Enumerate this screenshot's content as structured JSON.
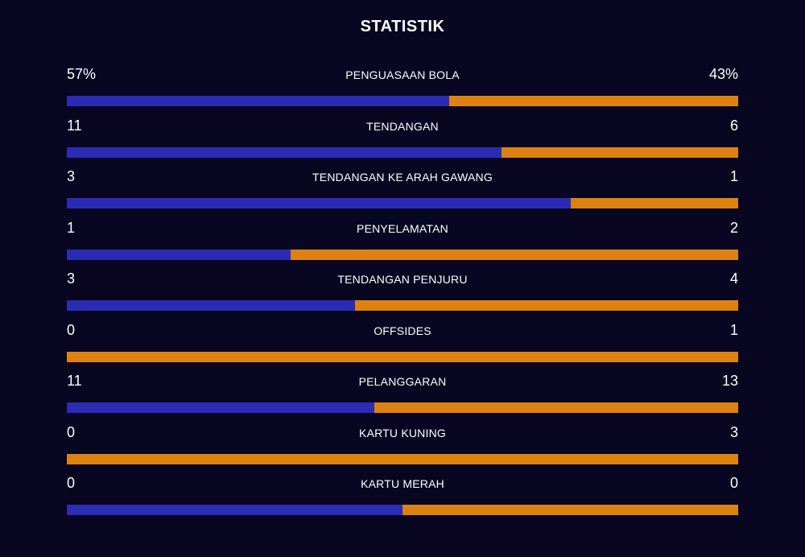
{
  "title": "STATISTIK",
  "colors": {
    "background": "#080620",
    "home": "#2a2cb6",
    "away": "#dd8212"
  },
  "stats": [
    {
      "label": "PENGUASAAN BOLA",
      "home": "57%",
      "away": "43%",
      "home_share": 0.57
    },
    {
      "label": "TENDANGAN",
      "home": "11",
      "away": "6",
      "home_share": 0.647
    },
    {
      "label": "TENDANGAN KE ARAH GAWANG",
      "home": "3",
      "away": "1",
      "home_share": 0.75
    },
    {
      "label": "PENYELAMATAN",
      "home": "1",
      "away": "2",
      "home_share": 0.333
    },
    {
      "label": "TENDANGAN PENJURU",
      "home": "3",
      "away": "4",
      "home_share": 0.429
    },
    {
      "label": "OFFSIDES",
      "home": "0",
      "away": "1",
      "home_share": 0
    },
    {
      "label": "PELANGGARAN",
      "home": "11",
      "away": "13",
      "home_share": 0.458
    },
    {
      "label": "KARTU KUNING",
      "home": "0",
      "away": "3",
      "home_share": 0
    },
    {
      "label": "KARTU MERAH",
      "home": "0",
      "away": "0",
      "home_share": 0.5
    }
  ]
}
